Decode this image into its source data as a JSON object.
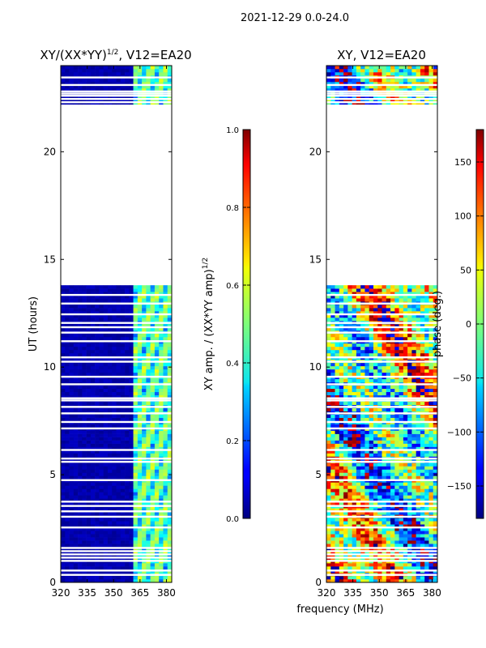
{
  "suptitle": "2021-12-29 0.0-24.0",
  "xlabel_shared": "frequency (MHz)",
  "chart_data": [
    {
      "type": "heatmap",
      "title_main": "XY/(XX*YY)",
      "title_exp": "1/2",
      "title_tail": ", V12=EA20",
      "ylabel": "UT (hours)",
      "x_ticks": [
        320,
        335,
        350,
        365,
        380
      ],
      "y_ticks": [
        0,
        5,
        10,
        15,
        20
      ],
      "xlim": [
        320,
        383
      ],
      "ylim": [
        0,
        24
      ],
      "colorbar": {
        "label_main": "XY amp. / (XX*YY amp)",
        "label_exp": "1/2",
        "ticks": [
          "0.0",
          "0.2",
          "0.4",
          "0.6",
          "0.8",
          "1.0"
        ],
        "tick_values": [
          0,
          0.2,
          0.4,
          0.6,
          0.8,
          1.0
        ],
        "range": [
          0,
          1
        ]
      }
    },
    {
      "type": "heatmap",
      "title": "XY, V12=EA20",
      "x_ticks": [
        320,
        335,
        350,
        365,
        380
      ],
      "y_ticks": [
        0,
        5,
        10,
        15,
        20
      ],
      "xlim": [
        320,
        383
      ],
      "ylim": [
        0,
        24
      ],
      "colorbar": {
        "label": "phase (deg.)",
        "ticks": [
          "150",
          "100",
          "50",
          "0",
          "−50",
          "−100",
          "−150"
        ],
        "tick_values": [
          150,
          100,
          50,
          0,
          -50,
          -100,
          -150
        ],
        "range": [
          -180,
          180
        ]
      }
    }
  ],
  "data_blocks_hours": [
    [
      0,
      13.85
    ],
    [
      22.2,
      24
    ]
  ],
  "gap_hours": [
    0.35,
    0.55,
    1.0,
    1.15,
    1.3,
    1.45,
    1.6,
    2.55,
    3.05,
    3.3,
    3.55,
    3.75,
    4.75,
    5.6,
    5.75,
    6.15,
    7.15,
    7.45,
    7.85,
    8.15,
    8.45,
    8.55,
    9.2,
    9.55,
    10.25,
    10.45,
    11.2,
    11.6,
    11.85,
    12.05,
    12.45,
    12.95,
    13.35,
    22.3,
    22.45,
    22.6,
    22.7,
    22.8,
    23.1,
    23.45
  ]
}
